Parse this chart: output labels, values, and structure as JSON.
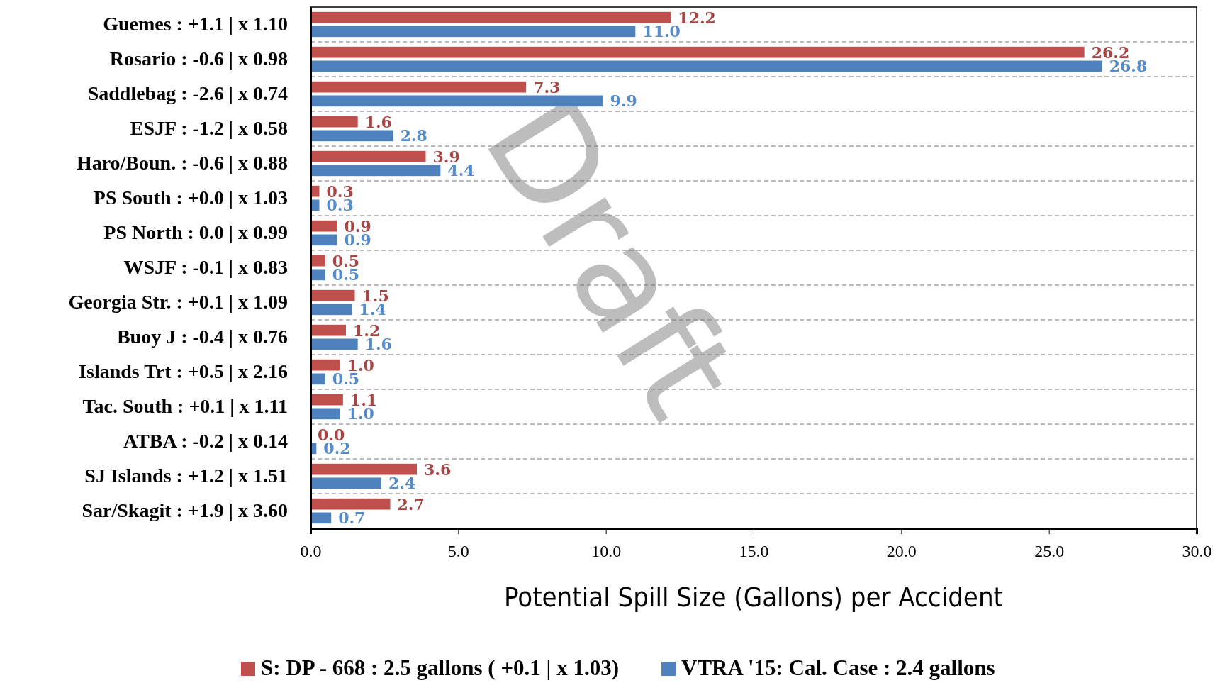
{
  "chart_data": {
    "type": "bar",
    "orientation": "horizontal",
    "xlabel": "Potential Spill Size (Gallons) per Accident",
    "categories": [
      "Guemes : +1.1 |  x 1.10",
      "Rosario : -0.6 |  x 0.98",
      "Saddlebag : -2.6 |  x 0.74",
      "ESJF : -1.2 |  x 0.58",
      "Haro/Boun. : -0.6 |  x 0.88",
      "PS South : +0.0 |  x 1.03",
      "PS North : 0.0 |  x 0.99",
      "WSJF : -0.1 |  x 0.83",
      "Georgia Str. : +0.1 |  x 1.09",
      "Buoy J : -0.4 |  x 0.76",
      "Islands Trt : +0.5 |  x 2.16",
      "Tac. South : +0.1 |  x 1.11",
      "ATBA : -0.2 |  x 0.14",
      "SJ Islands : +1.2 |  x 1.51",
      "Sar/Skagit : +1.9 |  x 3.60"
    ],
    "series": [
      {
        "name": "S: DP - 668 : 2.5 gallons ( +0.1 |  x 1.03)",
        "color": "#c0504d",
        "values": [
          12.2,
          26.2,
          7.3,
          1.6,
          3.9,
          0.3,
          0.9,
          0.5,
          1.5,
          1.2,
          1.0,
          1.1,
          0.0,
          3.6,
          2.7
        ],
        "value_labels": [
          "12.2",
          "26.2",
          "7.3",
          "1.6",
          "3.9",
          "0.3",
          "0.9",
          "0.5",
          "1.5",
          "1.2",
          "1.0",
          "1.1",
          "0.0",
          "3.6",
          "2.7"
        ]
      },
      {
        "name": "VTRA '15: Cal. Case : 2.4 gallons",
        "color": "#4f81bd",
        "values": [
          11.0,
          26.8,
          9.9,
          2.8,
          4.4,
          0.3,
          0.9,
          0.5,
          1.4,
          1.6,
          0.5,
          1.0,
          0.2,
          2.4,
          0.7
        ],
        "value_labels": [
          "11.0",
          "26.8",
          "9.9",
          "2.8",
          "4.4",
          "0.3",
          "0.9",
          "0.5",
          "1.4",
          "1.6",
          "0.5",
          "1.0",
          "0.2",
          "2.4",
          "0.7"
        ]
      }
    ],
    "xlim": [
      0,
      30
    ],
    "xticks": [
      {
        "value": 0,
        "label": "0.0"
      },
      {
        "value": 5,
        "label": "5.0"
      },
      {
        "value": 10,
        "label": "10.0"
      },
      {
        "value": 15,
        "label": "15.0"
      },
      {
        "value": 20,
        "label": "20.0"
      },
      {
        "value": 25,
        "label": "25.0"
      },
      {
        "value": 30,
        "label": "30.0"
      }
    ],
    "grid": "y",
    "legend": "bottom",
    "annotations": [
      "Draft"
    ]
  }
}
